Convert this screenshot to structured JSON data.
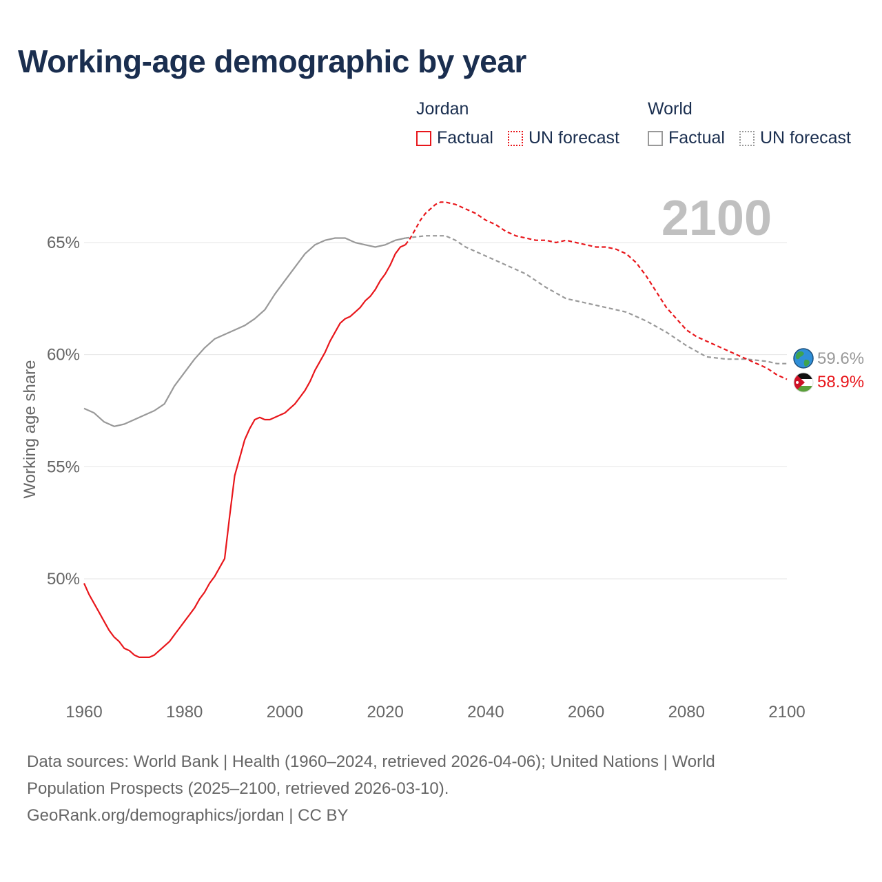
{
  "title": "Working-age demographic by year",
  "legend": {
    "groups": [
      {
        "name": "Jordan",
        "factual_label": "Factual",
        "forecast_label": "UN forecast",
        "color": "#e8161b"
      },
      {
        "name": "World",
        "factual_label": "Factual",
        "forecast_label": "UN forecast",
        "color": "#999999"
      }
    ]
  },
  "year_watermark": "2100",
  "end_labels": {
    "world": "59.6%",
    "jordan": "58.9%"
  },
  "icons": {
    "world": "globe-icon",
    "jordan": "jordan-flag-icon"
  },
  "sources": {
    "line1": "Data sources: World Bank | Health (1960–2024, retrieved 2026-04-06); United Nations | World",
    "line2": "Population Prospects (2025–2100, retrieved 2026-03-10).",
    "line3": "GeoRank.org/demographics/jordan | CC BY"
  },
  "chart_data": {
    "type": "line",
    "title": "Working-age demographic by year",
    "xlabel": "",
    "ylabel": "Working age share",
    "xlim": [
      1960,
      2100
    ],
    "ylim": [
      45,
      67.5
    ],
    "x_ticks": [
      1960,
      1980,
      2000,
      2020,
      2040,
      2060,
      2080,
      2100
    ],
    "x_tick_labels": [
      "1960",
      "1980",
      "2000",
      "2020",
      "2040",
      "2060",
      "2080",
      "2100"
    ],
    "y_ticks": [
      50,
      55,
      60,
      65
    ],
    "y_tick_labels": [
      "50%",
      "55%",
      "60%",
      "65%"
    ],
    "grid": true,
    "series": [
      {
        "name": "Jordan Factual",
        "color": "#e8161b",
        "dash": false,
        "x": [
          1960,
          1961,
          1962,
          1963,
          1964,
          1965,
          1966,
          1967,
          1968,
          1969,
          1970,
          1971,
          1972,
          1973,
          1974,
          1975,
          1976,
          1977,
          1978,
          1979,
          1980,
          1981,
          1982,
          1983,
          1984,
          1985,
          1986,
          1987,
          1988,
          1989,
          1990,
          1991,
          1992,
          1993,
          1994,
          1995,
          1996,
          1997,
          1998,
          1999,
          2000,
          2001,
          2002,
          2003,
          2004,
          2005,
          2006,
          2007,
          2008,
          2009,
          2010,
          2011,
          2012,
          2013,
          2014,
          2015,
          2016,
          2017,
          2018,
          2019,
          2020,
          2021,
          2022,
          2023,
          2024
        ],
        "y": [
          49.8,
          49.3,
          48.9,
          48.5,
          48.1,
          47.7,
          47.4,
          47.2,
          46.9,
          46.8,
          46.6,
          46.5,
          46.5,
          46.5,
          46.6,
          46.8,
          47.0,
          47.2,
          47.5,
          47.8,
          48.1,
          48.4,
          48.7,
          49.1,
          49.4,
          49.8,
          50.1,
          50.5,
          50.9,
          52.8,
          54.6,
          55.4,
          56.2,
          56.7,
          57.1,
          57.2,
          57.1,
          57.1,
          57.2,
          57.3,
          57.4,
          57.6,
          57.8,
          58.1,
          58.4,
          58.8,
          59.3,
          59.7,
          60.1,
          60.6,
          61.0,
          61.4,
          61.6,
          61.7,
          61.9,
          62.1,
          62.4,
          62.6,
          62.9,
          63.3,
          63.6,
          64.0,
          64.5,
          64.8,
          64.9
        ]
      },
      {
        "name": "Jordan UN forecast",
        "color": "#e8161b",
        "dash": true,
        "x": [
          2024,
          2025,
          2026,
          2027,
          2028,
          2029,
          2030,
          2031,
          2032,
          2034,
          2036,
          2038,
          2040,
          2042,
          2044,
          2046,
          2048,
          2050,
          2052,
          2054,
          2056,
          2058,
          2060,
          2062,
          2064,
          2066,
          2068,
          2070,
          2072,
          2074,
          2076,
          2078,
          2080,
          2082,
          2084,
          2086,
          2088,
          2090,
          2092,
          2094,
          2096,
          2098,
          2100
        ],
        "y": [
          64.9,
          65.2,
          65.6,
          66.0,
          66.3,
          66.5,
          66.7,
          66.8,
          66.8,
          66.7,
          66.5,
          66.3,
          66.0,
          65.8,
          65.5,
          65.3,
          65.2,
          65.1,
          65.1,
          65.0,
          65.1,
          65.0,
          64.9,
          64.8,
          64.8,
          64.7,
          64.5,
          64.1,
          63.5,
          62.8,
          62.1,
          61.6,
          61.1,
          60.8,
          60.6,
          60.4,
          60.2,
          60.0,
          59.8,
          59.6,
          59.4,
          59.1,
          58.9
        ]
      },
      {
        "name": "World Factual",
        "color": "#999999",
        "dash": false,
        "x": [
          1960,
          1962,
          1964,
          1966,
          1968,
          1970,
          1972,
          1974,
          1976,
          1978,
          1980,
          1982,
          1984,
          1986,
          1988,
          1990,
          1992,
          1994,
          1996,
          1998,
          2000,
          2002,
          2004,
          2006,
          2008,
          2010,
          2012,
          2014,
          2016,
          2018,
          2020,
          2022,
          2024
        ],
        "y": [
          57.6,
          57.4,
          57.0,
          56.8,
          56.9,
          57.1,
          57.3,
          57.5,
          57.8,
          58.6,
          59.2,
          59.8,
          60.3,
          60.7,
          60.9,
          61.1,
          61.3,
          61.6,
          62.0,
          62.7,
          63.3,
          63.9,
          64.5,
          64.9,
          65.1,
          65.2,
          65.2,
          65.0,
          64.9,
          64.8,
          64.9,
          65.1,
          65.2
        ]
      },
      {
        "name": "World UN forecast",
        "color": "#999999",
        "dash": true,
        "x": [
          2024,
          2028,
          2032,
          2034,
          2036,
          2038,
          2040,
          2044,
          2048,
          2052,
          2056,
          2060,
          2064,
          2068,
          2072,
          2076,
          2080,
          2084,
          2088,
          2092,
          2096,
          2098,
          2100
        ],
        "y": [
          65.2,
          65.3,
          65.3,
          65.1,
          64.8,
          64.6,
          64.4,
          64.0,
          63.6,
          63.0,
          62.5,
          62.3,
          62.1,
          61.9,
          61.5,
          61.0,
          60.4,
          59.9,
          59.8,
          59.8,
          59.7,
          59.6,
          59.6
        ]
      }
    ]
  }
}
